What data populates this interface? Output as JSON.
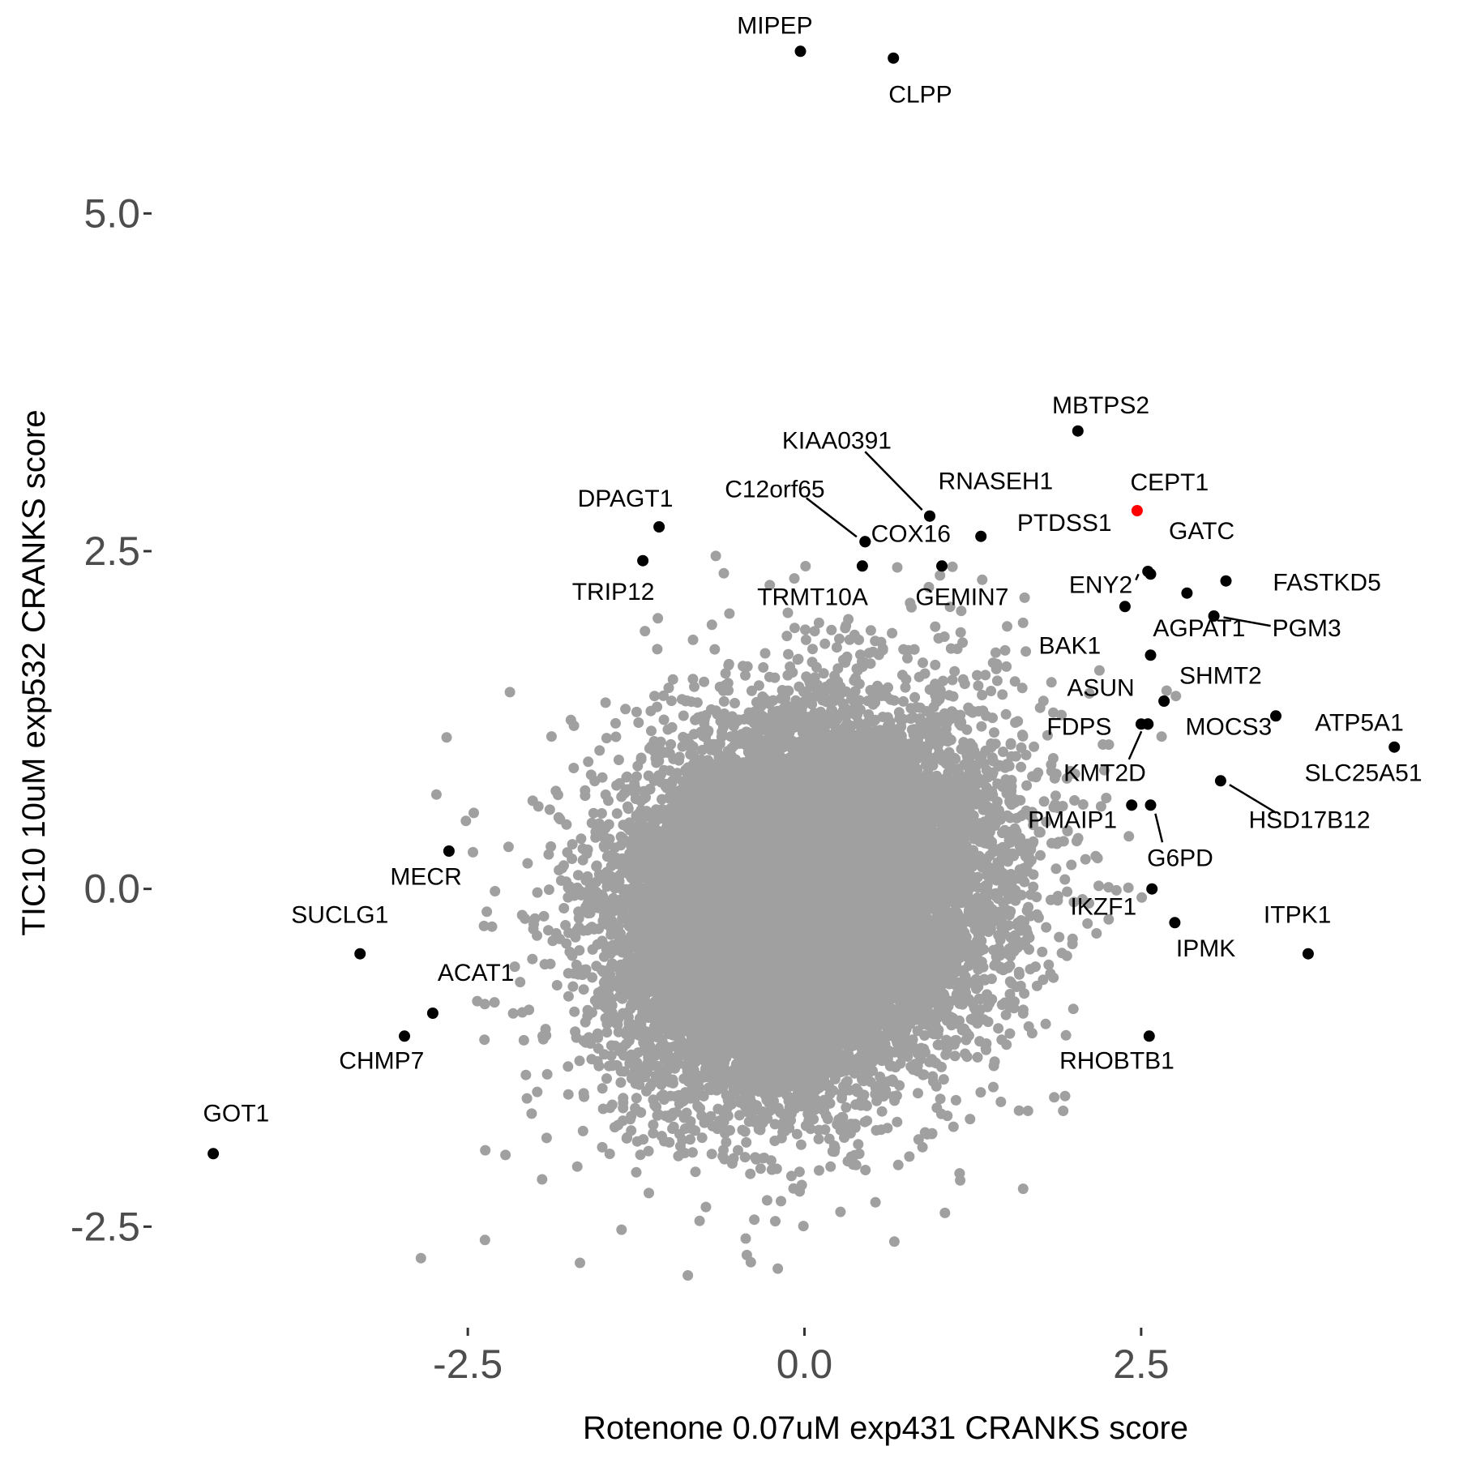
{
  "chart_data": {
    "type": "scatter",
    "xlabel": "Rotenone 0.07uM exp431 CRANKS score",
    "ylabel": "TIC10 10uM exp532 CRANKS score",
    "xlim": [
      -4.8,
      4.8
    ],
    "ylim": [
      -3.2,
      6.4
    ],
    "x_ticks": [
      -2.5,
      0.0,
      2.5
    ],
    "x_tick_labels": [
      "-2.5",
      "0.0",
      "2.5"
    ],
    "y_ticks": [
      -2.5,
      0.0,
      2.5,
      5.0
    ],
    "y_tick_labels": [
      "-2.5",
      "0.0",
      "2.5",
      "5.0"
    ],
    "grid": false,
    "background_points": {
      "description_color": "#a0a0a0",
      "count_approx": 17000,
      "center": [
        0.0,
        -0.1
      ],
      "sd": [
        0.65,
        0.65
      ],
      "correlation": 0.18
    },
    "colors": {
      "background": "#a0a0a0",
      "highlight": "#000000",
      "focus": "#ff0000"
    },
    "labeled_points": [
      {
        "label": "MIPEP",
        "x": -0.03,
        "y": 6.2,
        "lx": -0.22,
        "ly": 6.33
      },
      {
        "label": "CLPP",
        "x": 0.66,
        "y": 6.15,
        "lx": 0.86,
        "ly": 5.82
      },
      {
        "label": "MBTPS2",
        "x": 2.03,
        "y": 3.39,
        "lx": 2.2,
        "ly": 3.52
      },
      {
        "label": "KIAA0391",
        "x": 0.93,
        "y": 2.76,
        "lx": 0.24,
        "ly": 3.26,
        "leader": true
      },
      {
        "label": "RNASEH1",
        "x": 0.93,
        "y": 2.76,
        "lx": 1.42,
        "ly": 2.96
      },
      {
        "label": "CEPT1",
        "x": 2.47,
        "y": 2.8,
        "focus": true,
        "lx": 2.71,
        "ly": 2.95
      },
      {
        "label": "DPAGT1",
        "x": -1.08,
        "y": 2.68,
        "lx": -1.33,
        "ly": 2.83
      },
      {
        "label": "C12orf65",
        "x": 0.45,
        "y": 2.57,
        "lx": -0.22,
        "ly": 2.9,
        "leader": true
      },
      {
        "label": "COX16",
        "x": 0.45,
        "y": 2.57,
        "lx": 0.79,
        "ly": 2.57
      },
      {
        "label": "PTDSS1",
        "x": 1.31,
        "y": 2.61,
        "lx": 1.93,
        "ly": 2.65
      },
      {
        "label": "GATC",
        "x": 2.57,
        "y": 2.33,
        "lx": 2.95,
        "ly": 2.59
      },
      {
        "label": "TRIP12",
        "x": -1.2,
        "y": 2.43,
        "lx": -1.42,
        "ly": 2.14
      },
      {
        "label": "TRMT10A",
        "x": 0.43,
        "y": 2.39,
        "lx": 0.06,
        "ly": 2.1
      },
      {
        "label": "GEMIN7",
        "x": 1.02,
        "y": 2.39,
        "lx": 1.17,
        "ly": 2.1
      },
      {
        "label": "ENY2",
        "x": 2.55,
        "y": 2.35,
        "lx": 2.2,
        "ly": 2.19,
        "leader": true
      },
      {
        "label": "FASTKD5",
        "x": 3.13,
        "y": 2.28,
        "lx": 3.88,
        "ly": 2.21
      },
      {
        "label": "BAK1",
        "x": 2.38,
        "y": 2.09,
        "lx": 1.97,
        "ly": 1.74
      },
      {
        "label": "AGPAT1",
        "x": 2.84,
        "y": 2.19,
        "lx": 2.93,
        "ly": 1.87
      },
      {
        "label": "PGM3",
        "x": 3.04,
        "y": 2.02,
        "lx": 3.73,
        "ly": 1.87,
        "leader": true
      },
      {
        "label": "SHMT2",
        "x": 2.57,
        "y": 1.73,
        "lx": 3.09,
        "ly": 1.52
      },
      {
        "label": "ASUN",
        "x": 2.67,
        "y": 1.39,
        "lx": 2.2,
        "ly": 1.43
      },
      {
        "label": "ATP5A1",
        "x": 3.5,
        "y": 1.28,
        "lx": 4.12,
        "ly": 1.17
      },
      {
        "label": "FDPS",
        "x": 2.5,
        "y": 1.22,
        "lx": 2.04,
        "ly": 1.14
      },
      {
        "label": "MOCS3",
        "x": 2.55,
        "y": 1.22,
        "lx": 3.15,
        "ly": 1.14
      },
      {
        "label": "SLC25A51",
        "x": 4.38,
        "y": 1.05,
        "lx": 4.15,
        "ly": 0.8
      },
      {
        "label": "KMT2D",
        "x": 2.55,
        "y": 1.22,
        "lx": 2.23,
        "ly": 0.8,
        "leader": true
      },
      {
        "label": "HSD17B12",
        "x": 3.09,
        "y": 0.8,
        "lx": 3.75,
        "ly": 0.45,
        "leader": true
      },
      {
        "label": "PMAIP1",
        "x": 2.43,
        "y": 0.62,
        "lx": 1.99,
        "ly": 0.45
      },
      {
        "label": "G6PD",
        "x": 2.57,
        "y": 0.62,
        "lx": 2.79,
        "ly": 0.17,
        "leader": true
      },
      {
        "label": "MECR",
        "x": -2.64,
        "y": 0.28,
        "lx": -2.81,
        "ly": 0.03
      },
      {
        "label": "IKZF1",
        "x": 2.58,
        "y": 0.0,
        "lx": 2.22,
        "ly": -0.19
      },
      {
        "label": "SUCLG1",
        "x": -3.3,
        "y": -0.48,
        "lx": -3.45,
        "ly": -0.25
      },
      {
        "label": "ITPK1",
        "x": 3.74,
        "y": -0.48,
        "lx": 3.66,
        "ly": -0.25
      },
      {
        "label": "IPMK",
        "x": 2.75,
        "y": -0.25,
        "lx": 2.98,
        "ly": -0.5
      },
      {
        "label": "ACAT1",
        "x": -2.76,
        "y": -0.92,
        "lx": -2.44,
        "ly": -0.68
      },
      {
        "label": "CHMP7",
        "x": -2.97,
        "y": -1.09,
        "lx": -3.14,
        "ly": -1.33
      },
      {
        "label": "RHOBTB1",
        "x": 2.56,
        "y": -1.09,
        "lx": 2.32,
        "ly": -1.33
      },
      {
        "label": "GOT1",
        "x": -4.39,
        "y": -1.96,
        "lx": -4.22,
        "ly": -1.72
      }
    ]
  }
}
